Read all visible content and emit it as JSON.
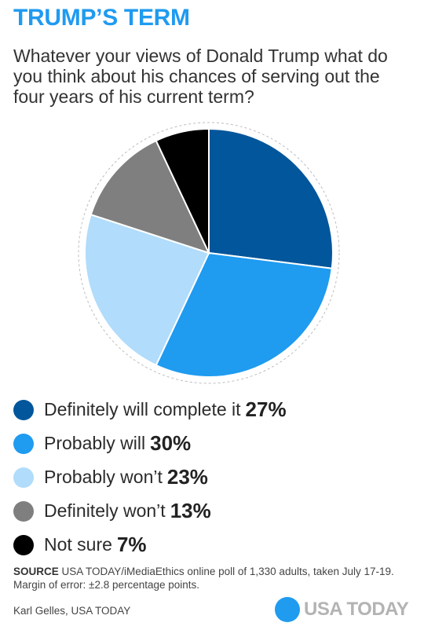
{
  "header": {
    "title": "TRUMP’S TERM",
    "question": "Whatever your views of Donald Trump what do you think about his chances of serving out the four years of his current term?"
  },
  "chart_data": {
    "type": "pie",
    "title": "TRUMP’S TERM",
    "slices": [
      {
        "label": "Definitely will complete it",
        "value": 27,
        "value_label": "27%",
        "color": "#02569b"
      },
      {
        "label": "Probably will",
        "value": 30,
        "value_label": "30%",
        "color": "#1f9bf0"
      },
      {
        "label": "Probably won’t",
        "value": 23,
        "value_label": "23%",
        "color": "#b1dcfb"
      },
      {
        "label": "Definitely won’t",
        "value": 13,
        "value_label": "13%",
        "color": "#7f7f7f"
      },
      {
        "label": "Not sure",
        "value": 7,
        "value_label": "7%",
        "color": "#000000"
      }
    ],
    "start_angle_deg": 0,
    "legend_position": "bottom-left"
  },
  "footer": {
    "source_label": "SOURCE",
    "source_text": "USA TODAY/iMediaEthics online poll of 1,330 adults, taken July 17-19. Margin of error: ±2.8 percentage points.",
    "credit": "Karl Gelles, USA TODAY",
    "logo_text": "USA TODAY",
    "logo_color": "#1f9bf0"
  }
}
